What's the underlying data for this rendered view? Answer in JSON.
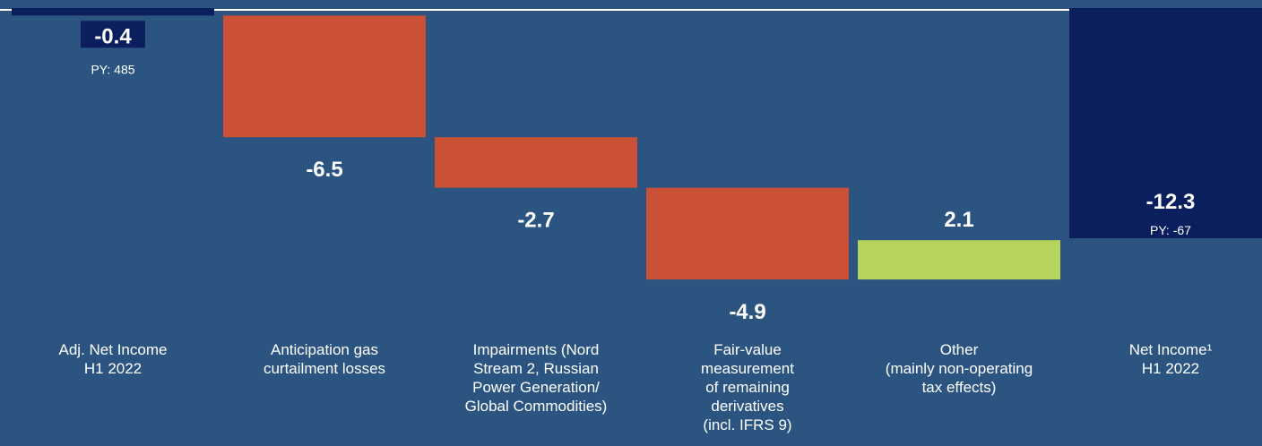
{
  "chart_data": {
    "type": "waterfall",
    "categories": [
      "Adj. Net Income\nH1 2022",
      "Anticipation gas\ncurtailment losses",
      "Impairments (Nord\nStream 2, Russian\nPower Generation/\nGlobal Commodities)",
      "Fair-value\nmeasurement\nof remaining\nderivatives\n(incl. IFRS 9)",
      "Other\n(mainly non-operating\ntax effects)",
      "Net Income¹\nH1 2022"
    ],
    "values": [
      -0.4,
      -6.5,
      -2.7,
      -4.9,
      2.1,
      -12.3
    ],
    "totals": [
      true,
      false,
      false,
      false,
      false,
      true
    ],
    "colors": [
      "#0b1f5e",
      "#cb5136",
      "#cb5136",
      "#cb5136",
      "#b6d35b",
      "#0b1f5e"
    ],
    "prior_year_labels": [
      "PY: 485",
      null,
      null,
      null,
      null,
      "PY: -67"
    ]
  }
}
